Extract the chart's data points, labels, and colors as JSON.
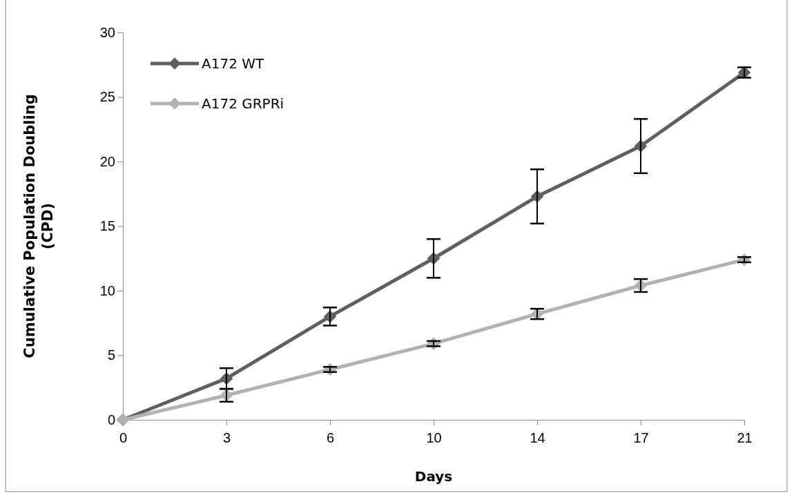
{
  "chart_data": {
    "type": "line",
    "xlabel": "Days",
    "ylabel": "Cumulative Population Doubling (CPD)",
    "categories": [
      "0",
      "3",
      "6",
      "10",
      "14",
      "17",
      "21"
    ],
    "series": [
      {
        "name": "A172 WT",
        "color": "#5f5f5f",
        "values": [
          0,
          3.2,
          8.0,
          12.5,
          17.3,
          21.2,
          26.9
        ],
        "errors": [
          null,
          0.8,
          0.7,
          1.5,
          2.1,
          2.1,
          0.4
        ]
      },
      {
        "name": "A172 GRPRi",
        "color": "#b2b2b2",
        "values": [
          0,
          1.9,
          3.9,
          5.9,
          8.2,
          10.4,
          12.4
        ],
        "errors": [
          null,
          0.5,
          0.2,
          0.2,
          0.4,
          0.5,
          0.2
        ]
      }
    ],
    "ylim": [
      0,
      30
    ],
    "yticks": [
      0,
      5,
      10,
      15,
      20,
      25,
      30
    ],
    "grid": false,
    "legend": "top left",
    "marker": "diamond",
    "line_style": "solid"
  }
}
